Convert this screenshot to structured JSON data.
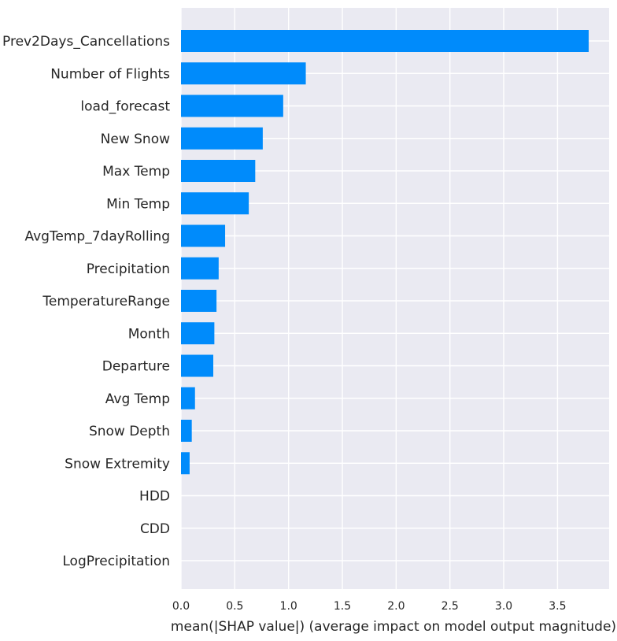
{
  "chart_data": {
    "type": "bar",
    "orientation": "horizontal",
    "title": "",
    "xlabel": "mean(|SHAP value|) (average impact on model output magnitude)",
    "ylabel": "",
    "xlim": [
      0,
      3.98
    ],
    "xticks": [
      0.0,
      0.5,
      1.0,
      1.5,
      2.0,
      2.5,
      3.0,
      3.5
    ],
    "xtick_labels": [
      "0.0",
      "0.5",
      "1.0",
      "1.5",
      "2.0",
      "2.5",
      "3.0",
      "3.5"
    ],
    "grid": true,
    "bar_color": "#008bfb",
    "background_color": "#eaeaf2",
    "categories": [
      "Prev2Days_Cancellations",
      "Number of Flights",
      "load_forecast",
      "New Snow",
      "Max Temp",
      "Min Temp",
      "AvgTemp_7dayRolling",
      "Precipitation",
      "TemperatureRange",
      "Month",
      "Departure",
      "Avg Temp",
      "Snow Depth",
      "Snow Extremity",
      "HDD",
      "CDD",
      "LogPrecipitation"
    ],
    "values": [
      3.79,
      1.16,
      0.95,
      0.76,
      0.69,
      0.63,
      0.41,
      0.35,
      0.33,
      0.31,
      0.3,
      0.13,
      0.1,
      0.08,
      0.0,
      0.0,
      0.0
    ]
  }
}
